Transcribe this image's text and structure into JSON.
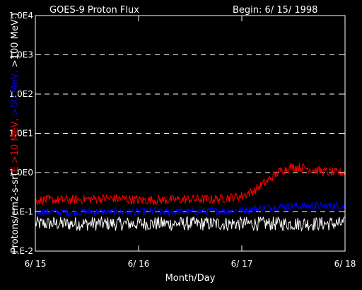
{
  "chart_data": {
    "type": "line",
    "title": "GOES-9 Proton Flux",
    "begin_label": "Begin: 6/ 15/ 1998",
    "xlabel": "Month/Day",
    "ylabel_parts": [
      {
        "text": "Protons/cm2-s-sr(",
        "color": "#ffffff"
      },
      {
        "text": "E >10 MeV, ",
        "color": "#ff0000"
      },
      {
        "text": ">50 MeV, ",
        "color": "#0000ff"
      },
      {
        "text": ">100 MeV )",
        "color": "#ffffff"
      }
    ],
    "yscale": "log",
    "ylim": [
      0.01,
      10000
    ],
    "yticks": [
      0.01,
      0.1,
      1,
      10,
      100,
      1000,
      10000
    ],
    "ytick_labels": [
      "1.E-2",
      "1.E-1",
      "1.0E0",
      "1.0E1",
      "1.0E2",
      "1.0E3",
      "1.0E4"
    ],
    "xlim": [
      "6/15",
      "6/18"
    ],
    "xticks": [
      "6/15",
      "6/16",
      "6/17",
      "6/18"
    ],
    "xtick_labels": [
      "6/ 15",
      "6/ 16",
      "6/ 17",
      "6/ 18"
    ],
    "grid": "dashed horizontal at decades",
    "series": [
      {
        "name": "E >10 MeV",
        "color": "#ff0000",
        "x": [
          "6/15 00:00",
          "6/15 06:00",
          "6/15 12:00",
          "6/15 18:00",
          "6/16 00:00",
          "6/16 06:00",
          "6/16 12:00",
          "6/16 18:00",
          "6/17 00:00",
          "6/17 03:00",
          "6/17 06:00",
          "6/17 09:00",
          "6/17 12:00",
          "6/17 15:00",
          "6/17 18:00",
          "6/17 21:00",
          "6/18 00:00"
        ],
        "y": [
          0.2,
          0.2,
          0.21,
          0.22,
          0.2,
          0.2,
          0.21,
          0.21,
          0.25,
          0.35,
          0.6,
          1.1,
          1.4,
          1.3,
          1.1,
          1.0,
          1.0
        ]
      },
      {
        "name": ">50 MeV",
        "color": "#0000ff",
        "x": [
          "6/15 00:00",
          "6/15 12:00",
          "6/16 00:00",
          "6/16 12:00",
          "6/17 00:00",
          "6/17 06:00",
          "6/17 12:00",
          "6/18 00:00"
        ],
        "y": [
          0.1,
          0.1,
          0.1,
          0.1,
          0.11,
          0.13,
          0.14,
          0.14
        ]
      },
      {
        "name": ">100 MeV",
        "color": "#ffffff",
        "x": [
          "6/15 00:00",
          "6/15 12:00",
          "6/16 00:00",
          "6/16 12:00",
          "6/17 00:00",
          "6/17 12:00",
          "6/18 00:00"
        ],
        "y": [
          0.05,
          0.05,
          0.05,
          0.05,
          0.05,
          0.05,
          0.05
        ]
      }
    ]
  }
}
